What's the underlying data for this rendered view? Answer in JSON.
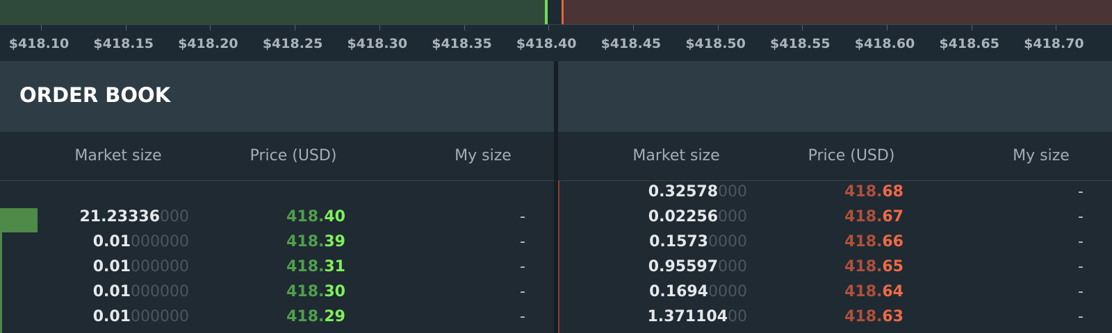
{
  "depth_axis": {
    "ticks": [
      "$418.10",
      "$418.15",
      "$418.20",
      "$418.25",
      "$418.30",
      "$418.35",
      "$418.40",
      "$418.45",
      "$418.50",
      "$418.55",
      "$418.60",
      "$418.65",
      "$418.70"
    ]
  },
  "order_book": {
    "title": "ORDER BOOK",
    "columns": [
      "Market size",
      "Price (USD)",
      "My size"
    ],
    "bids": [
      {
        "size": "21.23336",
        "size_pad": "000",
        "price_head": "418.",
        "price_tail": "40",
        "my_size": "-"
      },
      {
        "size": "0.01",
        "size_pad": "000000",
        "price_head": "418.",
        "price_tail": "39",
        "my_size": "-"
      },
      {
        "size": "0.01",
        "size_pad": "000000",
        "price_head": "418.",
        "price_tail": "31",
        "my_size": "-"
      },
      {
        "size": "0.01",
        "size_pad": "000000",
        "price_head": "418.",
        "price_tail": "30",
        "my_size": "-"
      },
      {
        "size": "0.01",
        "size_pad": "000000",
        "price_head": "418.",
        "price_tail": "29",
        "my_size": "-"
      }
    ],
    "asks": [
      {
        "size": "0.32578",
        "size_pad": "000",
        "price_head": "418.",
        "price_tail": "68",
        "my_size": "-"
      },
      {
        "size": "0.02256",
        "size_pad": "000",
        "price_head": "418.",
        "price_tail": "67",
        "my_size": "-"
      },
      {
        "size": "0.1573",
        "size_pad": "0000",
        "price_head": "418.",
        "price_tail": "66",
        "my_size": "-"
      },
      {
        "size": "0.95597",
        "size_pad": "000",
        "price_head": "418.",
        "price_tail": "65",
        "my_size": "-"
      },
      {
        "size": "0.1694",
        "size_pad": "0000",
        "price_head": "418.",
        "price_tail": "64",
        "my_size": "-"
      },
      {
        "size": "1.371104",
        "size_pad": "00",
        "price_head": "418.",
        "price_tail": "63",
        "my_size": "-"
      }
    ]
  }
}
